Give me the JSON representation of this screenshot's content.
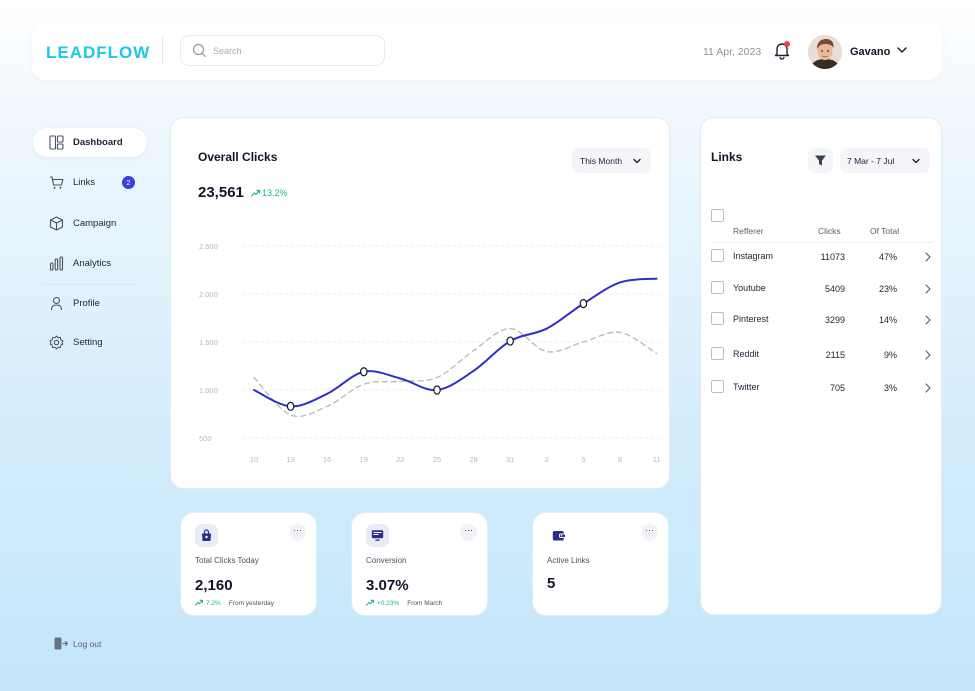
{
  "header": {
    "logo": "LEADFLOW",
    "search": {
      "placeholder": "Search",
      "value": ""
    },
    "date": "11 Apr, 2023",
    "user": {
      "name": "Gavano"
    }
  },
  "sidebar": {
    "items": [
      {
        "label": "Dashboard",
        "icon": "dashboard-icon",
        "active": true
      },
      {
        "label": "Links",
        "icon": "links-icon",
        "badge": "2"
      },
      {
        "label": "Campaign",
        "icon": "campaign-icon"
      },
      {
        "label": "Analytics",
        "icon": "analytics-icon"
      },
      {
        "label": "Profile",
        "icon": "profile-icon"
      },
      {
        "label": "Setting",
        "icon": "setting-icon"
      }
    ],
    "logout": "Log out"
  },
  "overall_clicks": {
    "title": "Overall Clicks",
    "total": "23,561",
    "change": "13.2%",
    "period": "This Month",
    "chart_data": {
      "type": "line",
      "x": [
        "10",
        "13",
        "16",
        "19",
        "22",
        "25",
        "28",
        "31",
        "2",
        "5",
        "8",
        "11"
      ],
      "y_ticks": [
        "2,500",
        "2,000",
        "1,500",
        "1,000",
        "500"
      ],
      "ylim": [
        500,
        2500
      ],
      "grid": true,
      "series": [
        {
          "values": [
            1000,
            830,
            960,
            1190,
            1120,
            1000,
            1200,
            1510,
            1640,
            1900,
            2120,
            2160
          ],
          "color": "#2f2fc7",
          "style": "solid",
          "markers_at": [
            1,
            3,
            5,
            7,
            9
          ]
        },
        {
          "values": [
            1130,
            740,
            830,
            1060,
            1090,
            1130,
            1410,
            1640,
            1400,
            1500,
            1600,
            1380
          ],
          "color": "#b9bcc8",
          "style": "dashed"
        }
      ]
    }
  },
  "links": {
    "title": "Links",
    "date_range": "7 Mar  -  7 Jul",
    "columns": [
      "Refferer",
      "Clicks",
      "Of Total"
    ],
    "rows": [
      {
        "referrer": "Instagram",
        "clicks": "11073",
        "pct": "47%"
      },
      {
        "referrer": "Youtube",
        "clicks": "5409",
        "pct": "23%"
      },
      {
        "referrer": "Pinterest",
        "clicks": "3299",
        "pct": "14%"
      },
      {
        "referrer": "Reddit",
        "clicks": "2115",
        "pct": "9%"
      },
      {
        "referrer": "Twitter",
        "clicks": "705",
        "pct": "3%"
      }
    ]
  },
  "stats": [
    {
      "label": "Total Clicks Today",
      "value": "2,160",
      "change": "7.2%",
      "from": "From yesterday",
      "icon": "bag-icon"
    },
    {
      "label": "Conversion",
      "value": "3.07%",
      "change": "+0.23%",
      "from": "From March",
      "icon": "monitor-icon"
    },
    {
      "label": "Active Links",
      "value": "5",
      "icon": "wallet-icon"
    }
  ],
  "colors": {
    "accent": "#2f2fc7",
    "logo": "#1cc8e8",
    "positive": "#1ab39a",
    "badge": "#3b3fe0"
  }
}
